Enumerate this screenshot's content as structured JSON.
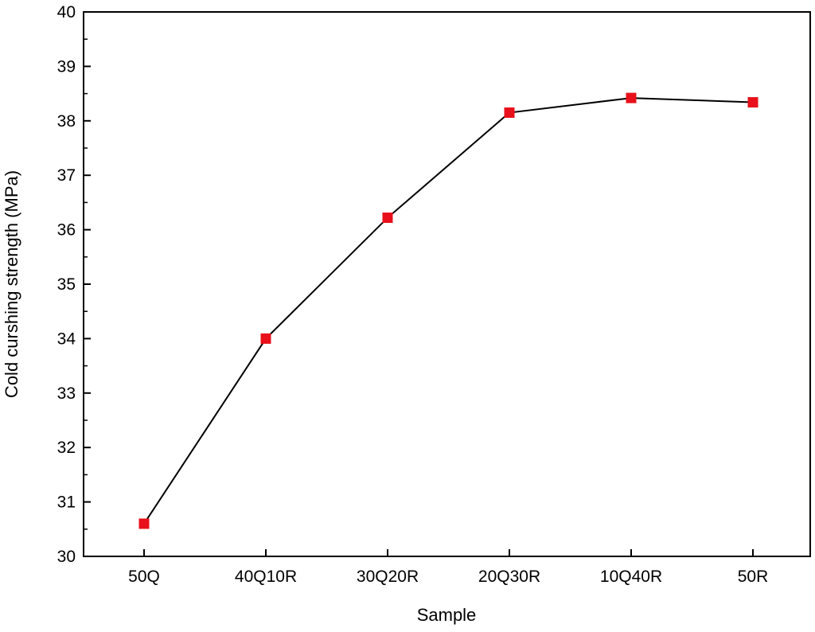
{
  "chart_data": {
    "type": "line",
    "xlabel": "Sample",
    "ylabel": "Cold curshing strength (MPa)",
    "categories": [
      "50Q",
      "40Q10R",
      "30Q20R",
      "20Q30R",
      "10Q40R",
      "50R"
    ],
    "series": [
      {
        "values": [
          30.6,
          34.0,
          36.22,
          38.15,
          38.42,
          38.34
        ],
        "line_color": "#000000",
        "marker": "square",
        "marker_color": "#e8101a"
      }
    ],
    "ylim": [
      30,
      40
    ],
    "yticks": [
      "30",
      "31",
      "32",
      "33",
      "34",
      "35",
      "36",
      "37",
      "38",
      "39",
      "40"
    ],
    "grid": false,
    "legend": "none"
  }
}
